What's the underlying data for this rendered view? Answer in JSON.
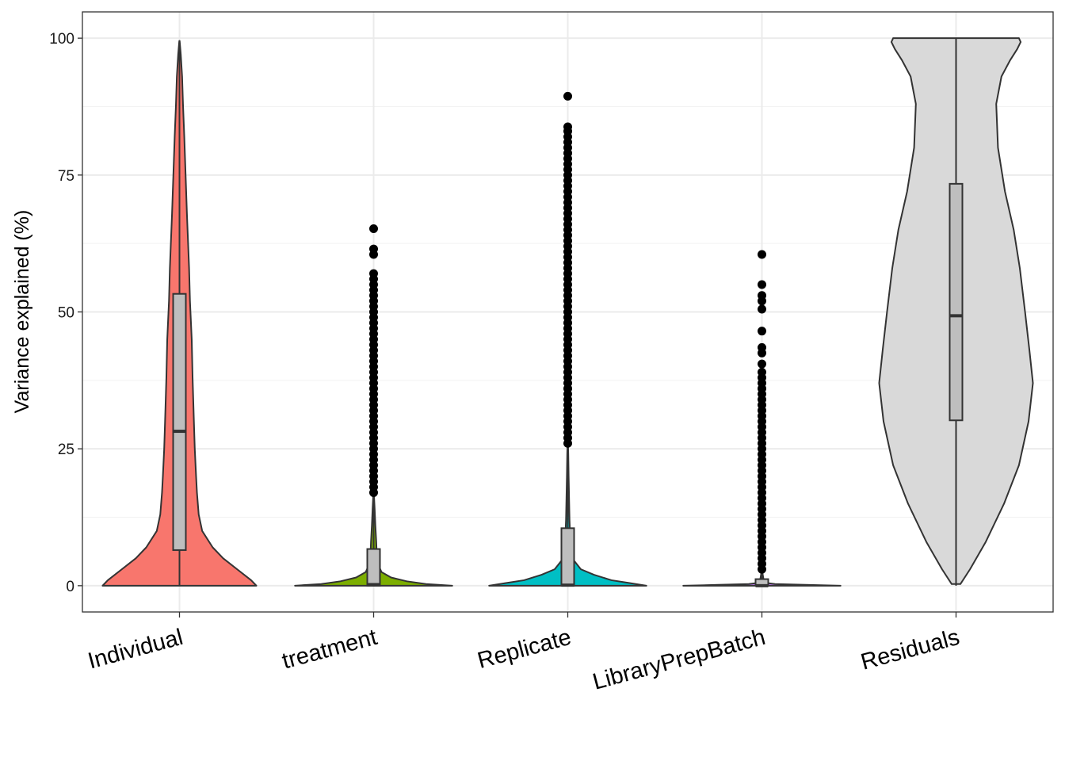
{
  "chart_data": {
    "type": "violin",
    "xlabel": "",
    "ylabel": "Variance explained (%)",
    "ylim": [
      -4.8,
      104.8
    ],
    "yticks": [
      0,
      25,
      50,
      75,
      100
    ],
    "grid": true,
    "legend": "none",
    "categories": [
      "Individual",
      "treatment",
      "Replicate",
      "LibraryPrepBatch",
      "Residuals"
    ],
    "series": [
      {
        "category": "Individual",
        "color": "#F8766D",
        "box": {
          "whisker_low": 0,
          "q1": 6.5,
          "median": 28.2,
          "q3": 53.3,
          "whisker_high": 99.5
        },
        "outliers": [],
        "density": [
          [
            0,
            0.88
          ],
          [
            1,
            0.82
          ],
          [
            3,
            0.66
          ],
          [
            5,
            0.5
          ],
          [
            7,
            0.38
          ],
          [
            10,
            0.26
          ],
          [
            13,
            0.22
          ],
          [
            17,
            0.2
          ],
          [
            20,
            0.19
          ],
          [
            25,
            0.175
          ],
          [
            30,
            0.165
          ],
          [
            38,
            0.15
          ],
          [
            45,
            0.14
          ],
          [
            52,
            0.12
          ],
          [
            58,
            0.11
          ],
          [
            62,
            0.1
          ],
          [
            68,
            0.085
          ],
          [
            75,
            0.07
          ],
          [
            82,
            0.055
          ],
          [
            88,
            0.04
          ],
          [
            93,
            0.03
          ],
          [
            97,
            0.015
          ],
          [
            99.5,
            0.002
          ]
        ]
      },
      {
        "category": "treatment",
        "color": "#7CAE00",
        "box": {
          "whisker_low": 0,
          "q1": 0,
          "median": 0.2,
          "q3": 6.7,
          "whisker_high": 16.5
        },
        "outliers": [
          17,
          18,
          19,
          20,
          21,
          22,
          23,
          24,
          25,
          26,
          27,
          28,
          29,
          30,
          31,
          32,
          33,
          34,
          35,
          36,
          37,
          38,
          39,
          40,
          41,
          42,
          43,
          44,
          45,
          46,
          47,
          48,
          49,
          50,
          51,
          52,
          53,
          54,
          55,
          56,
          57,
          60.5,
          61.5,
          65.2
        ],
        "density": [
          [
            0,
            0.9
          ],
          [
            0.3,
            0.6
          ],
          [
            0.8,
            0.38
          ],
          [
            1.5,
            0.2
          ],
          [
            2.5,
            0.09
          ],
          [
            4,
            0.05
          ],
          [
            6,
            0.035
          ],
          [
            8,
            0.03
          ],
          [
            11,
            0.02
          ],
          [
            14,
            0.012
          ],
          [
            16.5,
            0.004
          ]
        ]
      },
      {
        "category": "Replicate",
        "color": "#00BFC4",
        "box": {
          "whisker_low": 0,
          "q1": 0,
          "median": 0.1,
          "q3": 10.5,
          "whisker_high": 26
        },
        "outliers": [
          26,
          27,
          28,
          29,
          30,
          31,
          32,
          33,
          34,
          35,
          36,
          37,
          38,
          39,
          40,
          41,
          42,
          43,
          44,
          45,
          46,
          47,
          48,
          49,
          50,
          51,
          52,
          53,
          54,
          55,
          56,
          57,
          58,
          59,
          60,
          61,
          62,
          63,
          64,
          65,
          66,
          67,
          68,
          69,
          70,
          71,
          72,
          73,
          74,
          75,
          76,
          77,
          78,
          79,
          80,
          81,
          82,
          83,
          83.8,
          89.4
        ],
        "density": [
          [
            0,
            0.9
          ],
          [
            0.5,
            0.7
          ],
          [
            1,
            0.5
          ],
          [
            2,
            0.3
          ],
          [
            3,
            0.15
          ],
          [
            5,
            0.05
          ],
          [
            8,
            0.03
          ],
          [
            12,
            0.02
          ],
          [
            16,
            0.015
          ],
          [
            20,
            0.01
          ],
          [
            24,
            0.006
          ],
          [
            26,
            0.003
          ]
        ]
      },
      {
        "category": "LibraryPrepBatch",
        "color": "#C77CFF",
        "box": {
          "whisker_low": 0,
          "q1": 0,
          "median": 0,
          "q3": 1.2,
          "whisker_high": 3
        },
        "outliers": [
          3,
          4,
          5,
          6,
          7,
          8,
          9,
          10,
          11,
          12,
          13,
          14,
          15,
          16,
          17,
          18,
          19,
          20,
          21,
          22,
          23,
          24,
          25,
          26,
          27,
          28,
          29,
          30,
          31,
          32,
          33,
          34,
          35,
          36,
          37,
          38,
          39,
          40.5,
          42.5,
          43.5,
          46.5,
          50.5,
          52,
          53,
          55,
          60.5
        ],
        "density": [
          [
            0,
            0.9
          ],
          [
            0.15,
            0.5
          ],
          [
            0.3,
            0.15
          ],
          [
            0.5,
            0.05
          ],
          [
            1,
            0.02
          ],
          [
            2,
            0.01
          ],
          [
            3,
            0.003
          ]
        ]
      },
      {
        "category": "Residuals",
        "color": "#D9D9D9",
        "box": {
          "whisker_low": 0,
          "q1": 30.2,
          "median": 49.3,
          "q3": 73.4,
          "whisker_high": 100
        },
        "outliers": [],
        "density": [
          [
            0.3,
            0.05
          ],
          [
            3,
            0.16
          ],
          [
            8,
            0.34
          ],
          [
            15,
            0.55
          ],
          [
            22,
            0.72
          ],
          [
            30,
            0.83
          ],
          [
            37,
            0.88
          ],
          [
            43,
            0.84
          ],
          [
            50,
            0.79
          ],
          [
            58,
            0.73
          ],
          [
            65,
            0.66
          ],
          [
            72,
            0.56
          ],
          [
            80,
            0.48
          ],
          [
            88,
            0.46
          ],
          [
            93,
            0.52
          ],
          [
            96,
            0.62
          ],
          [
            98,
            0.7
          ],
          [
            99.3,
            0.74
          ],
          [
            100,
            0.72
          ]
        ]
      }
    ]
  }
}
